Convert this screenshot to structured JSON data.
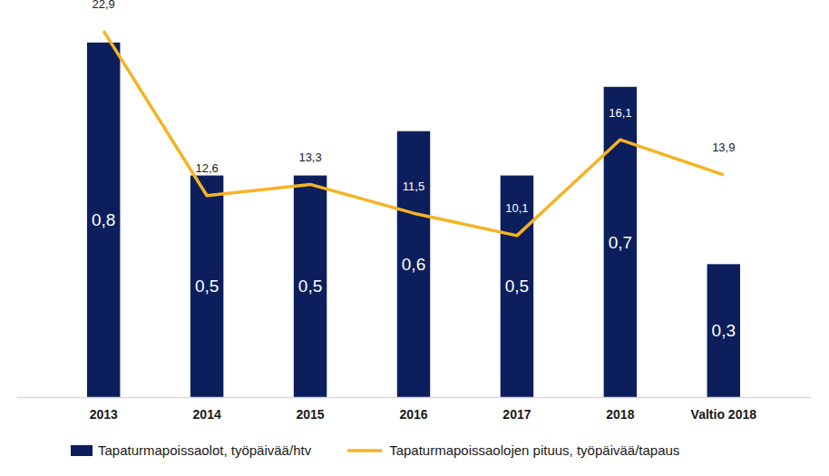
{
  "chart_data": {
    "type": "bar",
    "categories": [
      "2013",
      "2014",
      "2015",
      "2016",
      "2017",
      "2018",
      "Valtio 2018"
    ],
    "series": [
      {
        "name": "Tapaturmapoissaolot, työpäivää/htv",
        "type": "bar",
        "color": "#0c1f5c",
        "values": [
          0.8,
          0.5,
          0.5,
          0.6,
          0.5,
          0.7,
          0.3
        ],
        "value_labels": [
          "0,8",
          "0,5",
          "0,5",
          "0,6",
          "0,5",
          "0,7",
          "0,3"
        ]
      },
      {
        "name": "Tapaturmapoissaolojen pituus, työpäivää/tapaus",
        "type": "line",
        "axis": "y2",
        "color": "#f5b324",
        "marker": "none",
        "line_style": "solid",
        "values": [
          22.9,
          12.6,
          13.3,
          11.5,
          10.1,
          16.1,
          13.9
        ],
        "value_labels": [
          "22,9",
          "12,6",
          "13,3",
          "11,5",
          "10,1",
          "16,1",
          "13,9"
        ]
      }
    ],
    "ylim": [
      0,
      0.855
    ],
    "y2lim": [
      0,
      23.7
    ],
    "data_labels": true,
    "tick_labels": "x",
    "legend": "bottom",
    "grid": false
  }
}
